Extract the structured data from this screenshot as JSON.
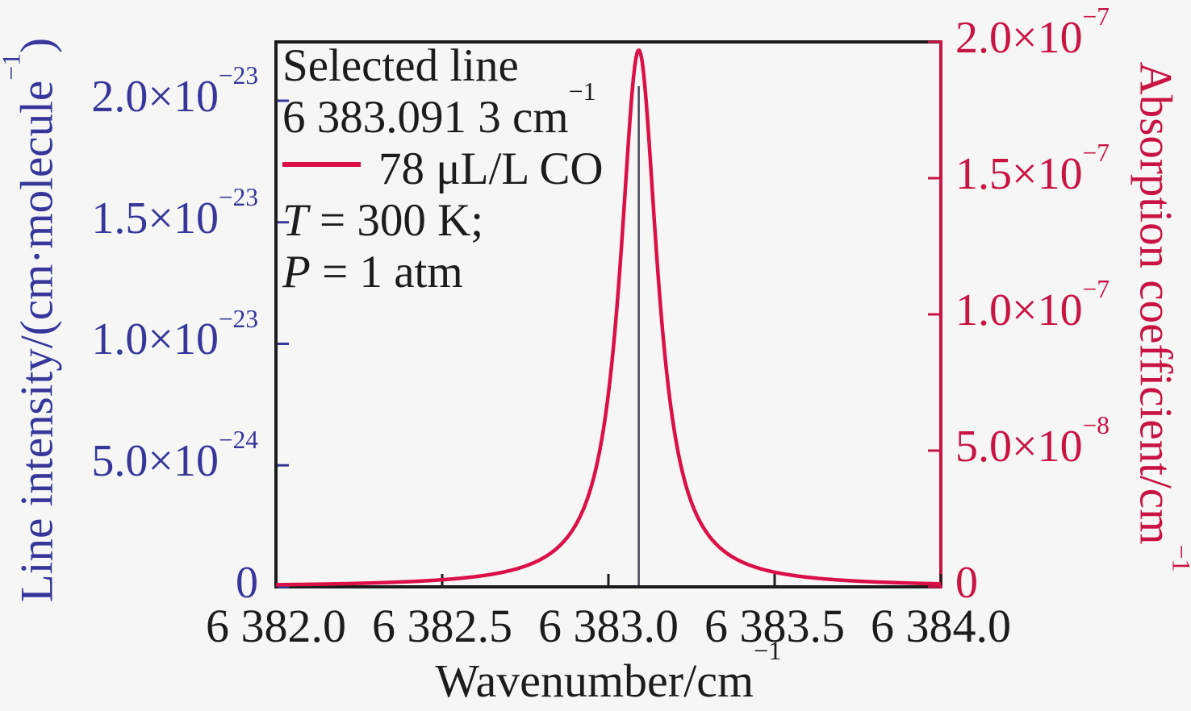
{
  "figure": {
    "background": "#f6f6f4"
  },
  "colors": {
    "frame": "#1c1c1c",
    "text": "#1c1c1c",
    "left_axis": "#37379b",
    "right_axis": "#c81343",
    "curve": "#dc1048",
    "stick": "#44455a"
  },
  "legend": {
    "title": "Selected line",
    "position": {
      "base": "6 383.091 3 cm",
      "sup": "−1"
    },
    "series": "78 μL/L CO",
    "temperature": {
      "var": "T",
      "rest": " = 300 K;"
    },
    "pressure": {
      "var": "P",
      "rest": " = 1 atm"
    }
  },
  "axes": {
    "x": {
      "title": {
        "base": "Wavenumber/cm",
        "sup": "−1"
      },
      "ticks": [
        {
          "label": "6 382.0",
          "value": 6382.0
        },
        {
          "label": "6 382.5",
          "value": 6382.5
        },
        {
          "label": "6 383.0",
          "value": 6383.0
        },
        {
          "label": "6 383.5",
          "value": 6383.5
        },
        {
          "label": "6 384.0",
          "value": 6384.0
        }
      ]
    },
    "left": {
      "title": {
        "base": "Line intensity/(cm·molecule",
        "sup": "−1",
        "close": ")"
      },
      "ticks": [
        {
          "base": "0",
          "sup": "",
          "value": 0
        },
        {
          "base": "5.0×10",
          "sup": "−24",
          "value": 5e-24
        },
        {
          "base": "1.0×10",
          "sup": "−23",
          "value": 1e-23
        },
        {
          "base": "1.5×10",
          "sup": "−23",
          "value": 1.5e-23
        },
        {
          "base": "2.0×10",
          "sup": "−23",
          "value": 2e-23
        }
      ]
    },
    "right": {
      "title": {
        "base": "Absorption coefficient/cm",
        "sup": "−1"
      },
      "ticks": [
        {
          "base": "0",
          "sup": "",
          "value": 0
        },
        {
          "base": "5.0×10",
          "sup": "−8",
          "value": 5e-08
        },
        {
          "base": "1.0×10",
          "sup": "−7",
          "value": 1e-07
        },
        {
          "base": "1.5×10",
          "sup": "−7",
          "value": 1.5e-07
        },
        {
          "base": "2.0×10",
          "sup": "−7",
          "value": 2e-07
        }
      ]
    }
  },
  "chart_data": {
    "type": "line",
    "title": "",
    "xlabel": "Wavenumber/cm⁻¹",
    "x_range": [
      6382.0,
      6384.0
    ],
    "left_axis": {
      "label": "Line intensity/(cm·molecule⁻¹)",
      "range": [
        0,
        2.242e-23
      ],
      "tick_values": [
        0,
        5e-24,
        1e-23,
        1.5e-23,
        2e-23
      ]
    },
    "right_axis": {
      "label": "Absorption coefficient/cm⁻¹",
      "range": [
        0,
        2e-07
      ],
      "tick_values": [
        0,
        5e-08,
        1e-07,
        1.5e-07,
        2e-07
      ]
    },
    "series": [
      {
        "name": "78 μL/L CO",
        "kind": "lorentzian",
        "axis": "right",
        "center": 6383.0913,
        "hwhm_cm1": 0.0685,
        "peak": 1.97e-07,
        "baseline": 0,
        "color": "#dc1048"
      },
      {
        "name": "Selected line",
        "kind": "stick",
        "axis": "left",
        "x": 6383.0913,
        "height": 2.06e-23,
        "color": "#44455a"
      }
    ],
    "annotations": [
      "Selected line",
      "6 383.091 3 cm⁻¹",
      "T = 300 K;",
      "P = 1 atm"
    ],
    "conditions": {
      "temperature_K": 300,
      "pressure_atm": 1,
      "mixing_ratio": "78 μL/L CO"
    },
    "selected_line_position_cm1": 6383.0913
  }
}
